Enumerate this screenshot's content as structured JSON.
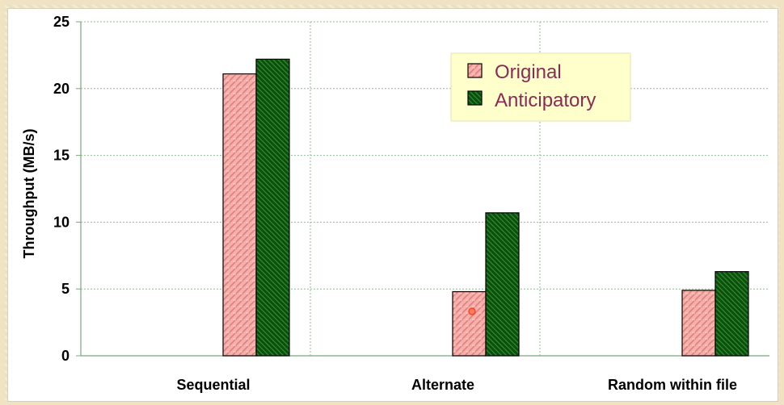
{
  "chart_data": {
    "type": "bar",
    "title": "",
    "xlabel": "",
    "ylabel": "Throughput (MB/s)",
    "ylim": [
      0,
      25
    ],
    "yticks": [
      "0",
      "5",
      "10",
      "15",
      "20",
      "25"
    ],
    "categories": [
      "Sequential",
      "Alternate",
      "Random within file"
    ],
    "series": [
      {
        "name": "Original",
        "values": [
          21.1,
          4.8,
          4.9
        ],
        "color": "#f4a3a0"
      },
      {
        "name": "Anticipatory",
        "values": [
          22.2,
          10.7,
          6.3
        ],
        "color": "#0f5a10"
      }
    ],
    "grid": true,
    "legend_position": "top-right"
  }
}
